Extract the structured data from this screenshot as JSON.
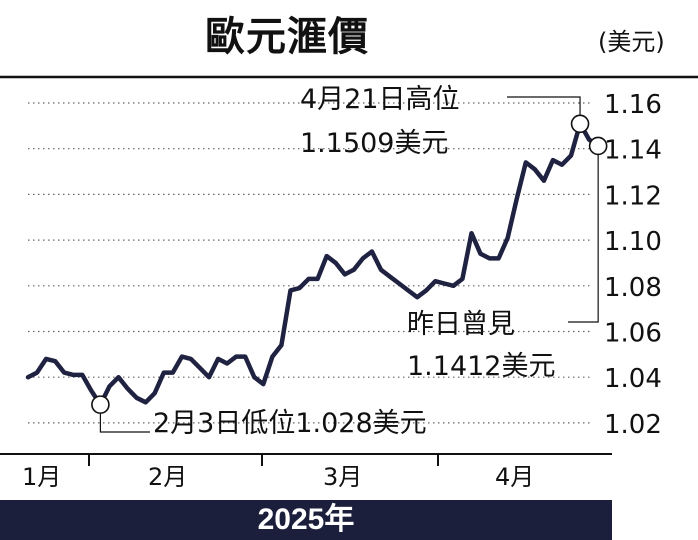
{
  "chart_data": {
    "type": "line",
    "title": "歐元滙價",
    "unit": "(美元)",
    "year_label": "2025年",
    "y_ticks": [
      "1.16",
      "1.14",
      "1.12",
      "1.10",
      "1.08",
      "1.06",
      "1.04",
      "1.02"
    ],
    "ylim": [
      1.01,
      1.17
    ],
    "x_ticks": [
      "1月",
      "2月",
      "3月",
      "4月"
    ],
    "grid": true,
    "series": [
      {
        "color": "#1f2240",
        "values": [
          1.04,
          1.042,
          1.048,
          1.047,
          1.042,
          1.041,
          1.041,
          1.034,
          1.028,
          1.036,
          1.04,
          1.035,
          1.031,
          1.029,
          1.033,
          1.042,
          1.042,
          1.049,
          1.048,
          1.044,
          1.04,
          1.048,
          1.046,
          1.049,
          1.049,
          1.04,
          1.037,
          1.049,
          1.054,
          1.078,
          1.079,
          1.083,
          1.083,
          1.093,
          1.09,
          1.085,
          1.087,
          1.092,
          1.095,
          1.087,
          1.084,
          1.081,
          1.078,
          1.075,
          1.078,
          1.082,
          1.081,
          1.08,
          1.083,
          1.103,
          1.094,
          1.092,
          1.092,
          1.101,
          1.118,
          1.134,
          1.131,
          1.126,
          1.135,
          1.133,
          1.137,
          1.151,
          1.144,
          1.141
        ]
      }
    ],
    "annotations": [
      {
        "text_line1": "4月21日高位",
        "text_line2": "1.1509美元",
        "index": 61,
        "value": 1.1509
      },
      {
        "text_line1": "昨日曾見",
        "text_line2": "1.1412美元",
        "index": 63,
        "value": 1.1412
      },
      {
        "text_line1": "2月3日低位1.028美元",
        "index": 8,
        "value": 1.028
      }
    ]
  }
}
